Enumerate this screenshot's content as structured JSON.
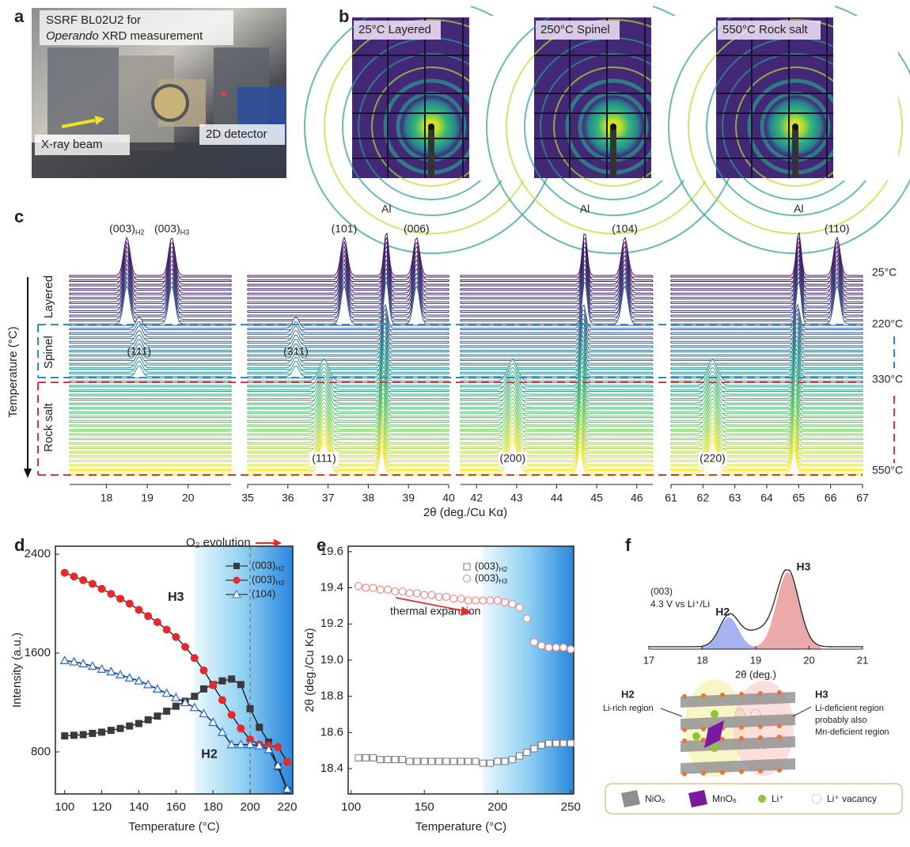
{
  "panel_labels": [
    "a",
    "b",
    "c",
    "d",
    "e",
    "f"
  ],
  "photo": {
    "caption_line1": "SSRF BL02U2 for",
    "caption_italic": "Operando",
    "caption_rest": "XRD measurement",
    "beam": "X-ray beam",
    "detector": "2D detector"
  },
  "patterns": [
    "25°C Layered",
    "250°C Spinel",
    "550°C Rock salt"
  ],
  "chart_data": [
    {
      "type": "waterfall",
      "xlabel": "2θ (deg./Cu Kα)",
      "ylabel": "Temperature (°C)",
      "phases": [
        {
          "label": "Layered",
          "color": "#222222"
        },
        {
          "label": "Spinel",
          "color": "#2a8fd0"
        },
        {
          "label": "Rock salt",
          "color": "#d23c3c"
        }
      ],
      "temperatures": [
        "25°C",
        "220°C",
        "330°C",
        "550°C"
      ],
      "subplots": [
        {
          "xlim": [
            17.1,
            21.05
          ],
          "xticks": [
            18,
            19,
            20
          ],
          "layered": [
            {
              "label": "(003)",
              "sub": "H2",
              "x": 18.5
            },
            {
              "label": "(003)",
              "sub": "H3",
              "x": 19.6
            }
          ],
          "spinel": [
            {
              "label": "(111)",
              "x": 18.8
            }
          ],
          "rock_salt": [],
          "aluminum": []
        },
        {
          "xlim": [
            35,
            40
          ],
          "xticks": [
            35,
            36,
            37,
            38,
            39,
            40
          ],
          "layered": [
            {
              "label": "(101)",
              "x": 37.4
            },
            {
              "label": "(006)",
              "x": 39.2
            }
          ],
          "spinel": [
            {
              "label": "(311)",
              "x": 36.2
            }
          ],
          "rock_salt": [
            {
              "label": "(111)",
              "x": 36.9
            }
          ],
          "aluminum": [
            {
              "label": "Al",
              "x": 38.45
            }
          ]
        },
        {
          "xlim": [
            41.6,
            46.4
          ],
          "xticks": [
            42,
            43,
            44,
            45,
            46
          ],
          "layered": [
            {
              "label": "(104)",
              "x": 45.7
            }
          ],
          "spinel": [],
          "rock_salt": [
            {
              "label": "(200)",
              "x": 42.9
            }
          ],
          "aluminum": [
            {
              "label": "Al",
              "x": 44.7
            }
          ]
        },
        {
          "xlim": [
            61,
            67
          ],
          "xticks": [
            61,
            62,
            63,
            64,
            65,
            66,
            67
          ],
          "layered": [
            {
              "label": "(110)",
              "x": 66.2
            }
          ],
          "spinel": [],
          "rock_salt": [
            {
              "label": "(220)",
              "x": 62.3
            }
          ],
          "aluminum": [
            {
              "label": "Al",
              "x": 65.0
            }
          ]
        }
      ]
    },
    {
      "type": "line",
      "xlabel": "Temperature (°C)",
      "ylabel": "Intensity (a.u.)",
      "xlim": [
        95,
        223
      ],
      "ylim": [
        460,
        2465
      ],
      "xticks": [
        100,
        120,
        140,
        160,
        180,
        200,
        220
      ],
      "yticks": [
        800,
        1600,
        2400
      ],
      "shade_from": 170,
      "dashed_at": 200,
      "annotation": "O₂ evolution",
      "labels": [
        {
          "text": "H3",
          "x": 160,
          "y": 2050,
          "color": "#e8292b"
        },
        {
          "text": "H2",
          "x": 178,
          "y": 780,
          "color": "#1f2a6b"
        }
      ],
      "x": [
        100,
        105,
        110,
        115,
        120,
        125,
        130,
        135,
        140,
        145,
        150,
        155,
        160,
        165,
        170,
        175,
        180,
        185,
        190,
        195,
        200,
        205,
        210,
        215,
        220
      ],
      "series": [
        {
          "name": "(003)",
          "sub": "H2",
          "color": "#3a3a3a",
          "marker": "square",
          "filled": true,
          "values": [
            930,
            935,
            940,
            950,
            960,
            975,
            990,
            1010,
            1030,
            1060,
            1090,
            1130,
            1170,
            1210,
            1250,
            1310,
            1345,
            1375,
            1390,
            1345,
            1150,
            1000,
            880,
            680,
            490
          ]
        },
        {
          "name": "(003)",
          "sub": "H3",
          "color": "#e8292b",
          "marker": "circle",
          "filled": true,
          "values": [
            2250,
            2220,
            2190,
            2160,
            2120,
            2080,
            2040,
            2000,
            1950,
            1900,
            1850,
            1790,
            1730,
            1650,
            1560,
            1460,
            1340,
            1220,
            1100,
            990,
            900,
            860,
            850,
            840,
            720
          ]
        },
        {
          "name": "(104)",
          "color": "#2b6fd6",
          "marker": "triangle",
          "filled": false,
          "values": [
            1540,
            1530,
            1515,
            1495,
            1470,
            1450,
            1425,
            1400,
            1375,
            1345,
            1310,
            1275,
            1240,
            1200,
            1160,
            1110,
            1040,
            960,
            860,
            860,
            860,
            850,
            820,
            690,
            500
          ]
        }
      ]
    },
    {
      "type": "scatter",
      "xlabel": "Temperature (°C)",
      "ylabel": "2θ (deg./Cu Kα)",
      "xlim": [
        98,
        252
      ],
      "ylim": [
        18.26,
        19.63
      ],
      "xticks": [
        100,
        150,
        200,
        250
      ],
      "yticks": [
        18.4,
        18.6,
        18.8,
        {
          "value": 19,
          "label": "19.0"
        },
        19.2,
        19.4,
        19.6
      ],
      "shade_from": 190,
      "annotation": "thermal expansion",
      "x": [
        105,
        110,
        115,
        120,
        125,
        130,
        135,
        140,
        145,
        150,
        155,
        160,
        165,
        170,
        175,
        180,
        185,
        190,
        195,
        200,
        205,
        210,
        215,
        220,
        225,
        230,
        235,
        240,
        245,
        250
      ],
      "series": [
        {
          "name": "(003)",
          "sub": "H2",
          "color": "#777777",
          "marker": "square",
          "values": [
            18.46,
            18.46,
            18.46,
            18.45,
            18.45,
            18.45,
            18.45,
            18.44,
            18.44,
            18.44,
            18.44,
            18.44,
            18.44,
            18.44,
            18.44,
            18.44,
            18.44,
            18.43,
            18.43,
            18.44,
            18.44,
            18.45,
            18.47,
            18.49,
            18.51,
            18.53,
            18.54,
            18.54,
            18.54,
            18.54
          ]
        },
        {
          "name": "(003)",
          "sub": "H3",
          "color": "#f07a7a",
          "marker": "circle",
          "values": [
            19.41,
            19.4,
            19.4,
            19.39,
            19.39,
            19.38,
            19.38,
            19.37,
            19.37,
            19.36,
            19.36,
            19.35,
            19.35,
            19.34,
            19.34,
            19.33,
            19.33,
            19.33,
            19.33,
            19.33,
            19.32,
            19.31,
            19.29,
            19.23,
            19.1,
            19.08,
            19.07,
            19.07,
            19.07,
            19.06
          ]
        }
      ]
    },
    {
      "type": "profile",
      "xlabel": "2θ (deg.)",
      "xlim": [
        17,
        21
      ],
      "xticks": [
        17,
        18,
        19,
        20,
        21
      ],
      "title": "(003)",
      "subtitle": "4.3 V vs Li⁺/Li",
      "peaks": [
        {
          "label": "H2",
          "x": 18.5,
          "color": "#2f3aa0",
          "fill": "#9aa4ee"
        },
        {
          "label": "H3",
          "x": 19.6,
          "color": "#e02020",
          "fill": "#e89a9a"
        }
      ]
    }
  ],
  "schematic": {
    "h2": "H2",
    "h2_text": "Li-rich region",
    "h3": "H3",
    "h3_lines": [
      "Li-deficient region",
      "probably also",
      "Mn-deficient region"
    ],
    "legend": [
      "NiO₆",
      "MnO₆",
      "Li⁺",
      "Li⁺ vacancy"
    ]
  }
}
